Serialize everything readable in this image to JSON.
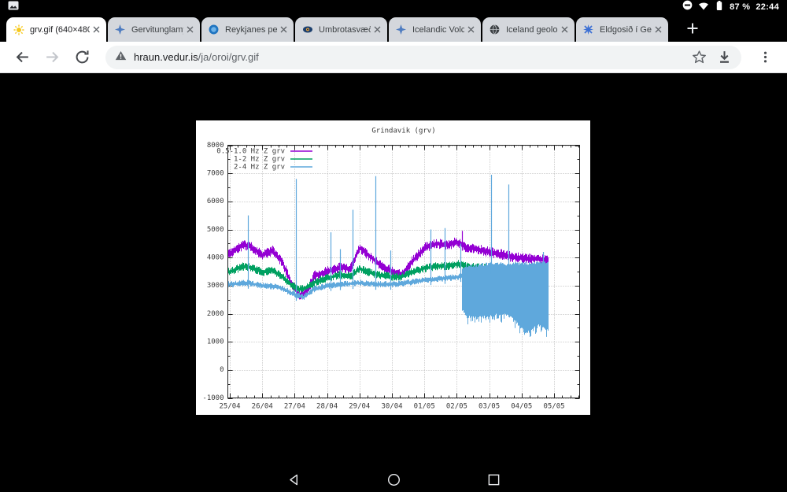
{
  "status_bar": {
    "time": "22:44",
    "battery": "87 %",
    "icons": [
      "screenshot",
      "do-not-disturb",
      "wifi",
      "battery"
    ]
  },
  "tab_strip": {
    "tabs": [
      {
        "title": "grv.gif (640×480",
        "favicon": "sun",
        "active": true
      },
      {
        "title": "Gervitunglamynd",
        "favicon": "star4",
        "active": false
      },
      {
        "title": "Reykjanes penin",
        "favicon": "blue-circle",
        "active": false
      },
      {
        "title": "Umbrotasvæðið",
        "favicon": "eye",
        "active": false
      },
      {
        "title": "Icelandic Volcan",
        "favicon": "star4",
        "active": false
      },
      {
        "title": "Iceland geology",
        "favicon": "globe",
        "active": false
      },
      {
        "title": "Eldgosið í Geldin",
        "favicon": "rosette",
        "active": false
      }
    ]
  },
  "toolbar": {
    "url_host": "hraun.vedur.is",
    "url_path": "/ja/oroi/grv.gif",
    "icons": [
      "back",
      "forward",
      "reload",
      "not-secure-warning",
      "bookmark-star",
      "download",
      "menu"
    ]
  },
  "navigation_bar": {
    "icons": [
      "back",
      "home",
      "recents"
    ]
  },
  "chart_data": {
    "type": "line",
    "title": "Grindavik (grv)",
    "x_tick_labels": [
      "25/04",
      "26/04",
      "27/04",
      "28/04",
      "29/04",
      "30/04",
      "01/05",
      "02/05",
      "03/05",
      "04/05",
      "05/05"
    ],
    "y_tick_labels": [
      "-1000",
      "0",
      "1000",
      "2000",
      "3000",
      "4000",
      "5000",
      "6000",
      "7000",
      "8000"
    ],
    "ylim": [
      -1000,
      8000
    ],
    "y_tick_step": 1000,
    "grid": "dotted",
    "legend_position": "top-left",
    "background": "#ffffff",
    "data_start_day": -0.05,
    "data_end_day": 9.82,
    "series": [
      {
        "name": "0.5-1.0 Hz Z grv",
        "color": "#9400d3",
        "band_halfwidth": 190,
        "points": [
          [
            0,
            4150
          ],
          [
            0.4,
            4450
          ],
          [
            0.6,
            4400
          ],
          [
            1,
            4100
          ],
          [
            1.3,
            4250
          ],
          [
            1.6,
            3850
          ],
          [
            1.9,
            3050
          ],
          [
            2.15,
            2650
          ],
          [
            2.35,
            2750
          ],
          [
            2.6,
            3350
          ],
          [
            3,
            3500
          ],
          [
            3.4,
            3650
          ],
          [
            3.7,
            3600
          ],
          [
            4,
            4350
          ],
          [
            4.2,
            4150
          ],
          [
            4.6,
            3750
          ],
          [
            5,
            3500
          ],
          [
            5.3,
            3400
          ],
          [
            5.6,
            3850
          ],
          [
            6,
            4350
          ],
          [
            6.4,
            4500
          ],
          [
            6.7,
            4450
          ],
          [
            7,
            4550
          ],
          [
            7.3,
            4350
          ],
          [
            7.6,
            4300
          ],
          [
            8,
            4200
          ],
          [
            8.4,
            4100
          ],
          [
            8.8,
            4000
          ],
          [
            9.2,
            3950
          ],
          [
            9.5,
            3950
          ],
          [
            9.8,
            3900
          ]
        ],
        "spikes": [
          [
            7.16,
            4950
          ]
        ]
      },
      {
        "name": "1-2 Hz Z grv",
        "color": "#00a060",
        "band_halfwidth": 150,
        "points": [
          [
            0,
            3500
          ],
          [
            0.4,
            3680
          ],
          [
            0.6,
            3650
          ],
          [
            1,
            3480
          ],
          [
            1.3,
            3550
          ],
          [
            1.6,
            3330
          ],
          [
            1.9,
            3000
          ],
          [
            2.15,
            2870
          ],
          [
            2.35,
            2920
          ],
          [
            2.6,
            3120
          ],
          [
            3,
            3280
          ],
          [
            3.4,
            3380
          ],
          [
            3.7,
            3320
          ],
          [
            4,
            3600
          ],
          [
            4.2,
            3500
          ],
          [
            4.6,
            3380
          ],
          [
            5,
            3320
          ],
          [
            5.3,
            3320
          ],
          [
            5.6,
            3480
          ],
          [
            6,
            3620
          ],
          [
            6.4,
            3700
          ],
          [
            6.7,
            3680
          ],
          [
            7,
            3780
          ],
          [
            7.3,
            3680
          ],
          [
            7.6,
            3650
          ],
          [
            8,
            3620
          ],
          [
            8.4,
            3560
          ],
          [
            8.8,
            3600
          ],
          [
            9.2,
            3560
          ],
          [
            9.5,
            3620
          ],
          [
            9.8,
            3580
          ]
        ],
        "spikes": []
      },
      {
        "name": "2-4 Hz Z grv",
        "color": "#5fa8dc",
        "band_halfwidth": 115,
        "points": [
          [
            0,
            3050
          ],
          [
            0.5,
            3100
          ],
          [
            1,
            3000
          ],
          [
            1.5,
            2950
          ],
          [
            2,
            2680
          ],
          [
            2.25,
            2580
          ],
          [
            2.6,
            2880
          ],
          [
            3,
            3000
          ],
          [
            3.5,
            3050
          ],
          [
            4,
            3100
          ],
          [
            4.5,
            3050
          ],
          [
            5,
            3050
          ],
          [
            5.5,
            3100
          ],
          [
            6,
            3200
          ],
          [
            6.5,
            3250
          ],
          [
            7,
            3300
          ],
          [
            7.15,
            3350
          ]
        ],
        "wide_band": {
          "start_day": 7.15,
          "points": [
            [
              7.15,
              2200,
              3650
            ],
            [
              7.3,
              1950,
              3700
            ],
            [
              7.6,
              1900,
              3720
            ],
            [
              8,
              1950,
              3780
            ],
            [
              8.4,
              2050,
              3780
            ],
            [
              8.7,
              1900,
              3760
            ],
            [
              9,
              1500,
              3800
            ],
            [
              9.2,
              1400,
              3800
            ],
            [
              9.5,
              1650,
              3840
            ],
            [
              9.8,
              1450,
              3840
            ]
          ]
        },
        "spikes": [
          [
            0.55,
            5500
          ],
          [
            2.05,
            6800
          ],
          [
            3.1,
            4900
          ],
          [
            3.4,
            4300
          ],
          [
            3.78,
            5700
          ],
          [
            4.5,
            6900
          ],
          [
            4.95,
            4250
          ],
          [
            6.2,
            5000
          ],
          [
            6.62,
            5050
          ],
          [
            7.1,
            4500
          ],
          [
            8.05,
            6950
          ],
          [
            8.6,
            6600
          ],
          [
            9.65,
            4200
          ]
        ]
      }
    ]
  }
}
